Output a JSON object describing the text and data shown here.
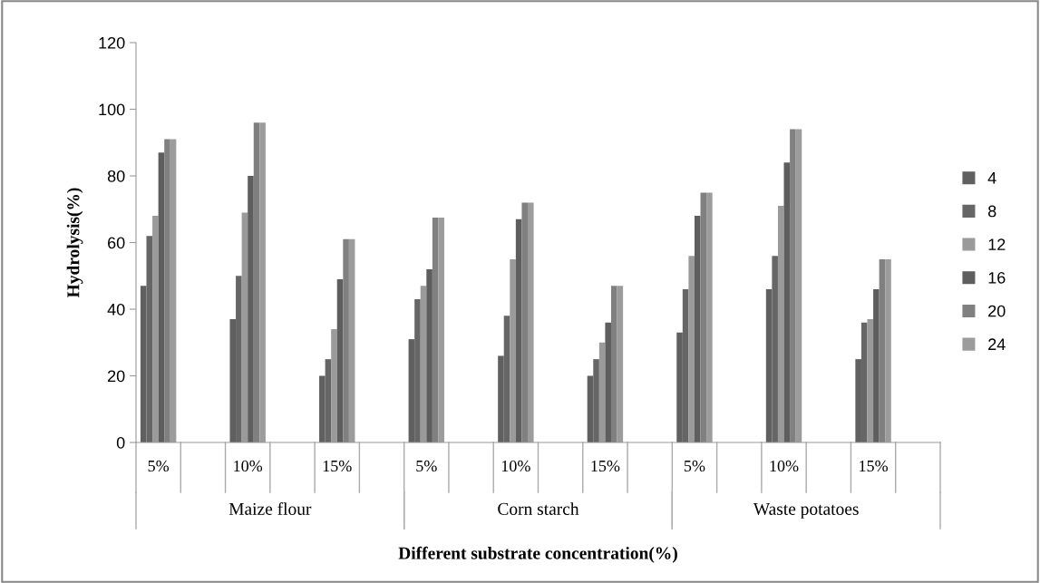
{
  "chart_data": {
    "type": "bar",
    "xlabel": "Different substrate concentration(%)",
    "ylabel": "Hydrolysis(%)",
    "categories": [
      "5%",
      null,
      "10%",
      null,
      "15%",
      null,
      "5%",
      null,
      "10%",
      null,
      "15%",
      null,
      "5%",
      null,
      "10%",
      null,
      "15%",
      null
    ],
    "annotations": [
      "Maize flour",
      "Corn starch",
      "Waste potatoes"
    ],
    "series": [
      {
        "name": "4",
        "color": "#606060",
        "values": [
          47,
          null,
          37,
          null,
          20,
          null,
          31,
          null,
          26,
          null,
          20,
          null,
          33,
          null,
          46,
          null,
          25,
          null
        ]
      },
      {
        "name": "8",
        "color": "#666666",
        "values": [
          62,
          null,
          50,
          null,
          25,
          null,
          43,
          null,
          38,
          null,
          25,
          null,
          46,
          null,
          56,
          null,
          36,
          null
        ]
      },
      {
        "name": "12",
        "color": "#9a9a9a",
        "values": [
          68,
          null,
          69,
          null,
          34,
          null,
          47,
          null,
          55,
          null,
          30,
          null,
          56,
          null,
          71,
          null,
          37,
          null
        ]
      },
      {
        "name": "16",
        "color": "#5e5e5e",
        "values": [
          87,
          null,
          80,
          null,
          49,
          null,
          52,
          null,
          67,
          null,
          36,
          null,
          68,
          null,
          84,
          null,
          46,
          null
        ]
      },
      {
        "name": "20",
        "color": "#808080",
        "values": [
          91,
          null,
          96,
          null,
          61,
          null,
          67.5,
          null,
          72,
          null,
          47,
          null,
          75,
          null,
          94,
          null,
          55,
          null
        ]
      },
      {
        "name": "24",
        "color": "#9c9c9c",
        "values": [
          91,
          null,
          96,
          null,
          61,
          null,
          67.5,
          null,
          72,
          null,
          47,
          null,
          75,
          null,
          94,
          null,
          55,
          null
        ]
      }
    ],
    "ylim": [
      0,
      120
    ],
    "yticks": [
      0,
      20,
      40,
      60,
      80,
      100,
      120
    ],
    "grid": false,
    "legend": "right"
  }
}
